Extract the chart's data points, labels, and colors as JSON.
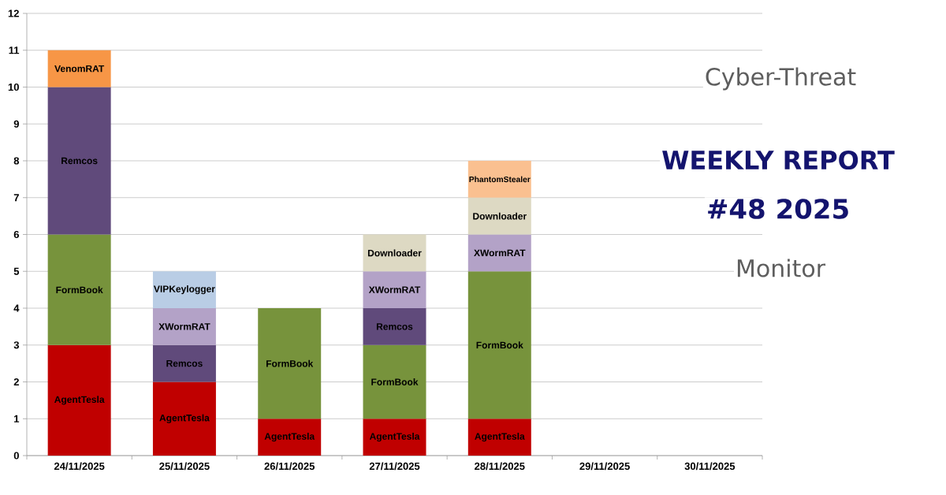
{
  "chart_data": {
    "type": "bar",
    "stacked": true,
    "title": "WEEKLY REPORT",
    "subtitle": "#48 2025",
    "annotations": [
      "Cyber-Threat",
      "Monitor"
    ],
    "categories": [
      "24/11/2025",
      "25/11/2025",
      "26/11/2025",
      "27/11/2025",
      "28/11/2025",
      "29/11/2025",
      "30/11/2025"
    ],
    "series": [
      {
        "name": "AgentTesla",
        "color": "#c00000",
        "values": [
          3,
          2,
          1,
          1,
          1,
          null,
          null
        ]
      },
      {
        "name": "FormBook",
        "color": "#77933c",
        "values": [
          3,
          null,
          3,
          2,
          4,
          null,
          null
        ]
      },
      {
        "name": "Remcos",
        "color": "#604a7b",
        "values": [
          4,
          1,
          null,
          1,
          null,
          null,
          null
        ]
      },
      {
        "name": "XWormRAT",
        "color": "#b3a2c7",
        "values": [
          null,
          1,
          null,
          1,
          1,
          null,
          null
        ]
      },
      {
        "name": "VIPKeylogger",
        "color": "#b9cde5",
        "values": [
          null,
          1,
          null,
          null,
          null,
          null,
          null
        ]
      },
      {
        "name": "Downloader",
        "color": "#ddd9c3",
        "values": [
          null,
          null,
          null,
          1,
          1,
          null,
          null
        ]
      },
      {
        "name": "PhantomStealer",
        "color": "#fac090",
        "values": [
          null,
          null,
          null,
          null,
          1,
          null,
          null
        ]
      },
      {
        "name": "VenomRAT",
        "color": "#f79646",
        "values": [
          1,
          null,
          null,
          null,
          null,
          null,
          null
        ]
      }
    ],
    "ylim": [
      0,
      12
    ],
    "yticks": [
      0,
      1,
      2,
      3,
      4,
      5,
      6,
      7,
      8,
      9,
      10,
      11,
      12
    ],
    "grid": "y"
  }
}
